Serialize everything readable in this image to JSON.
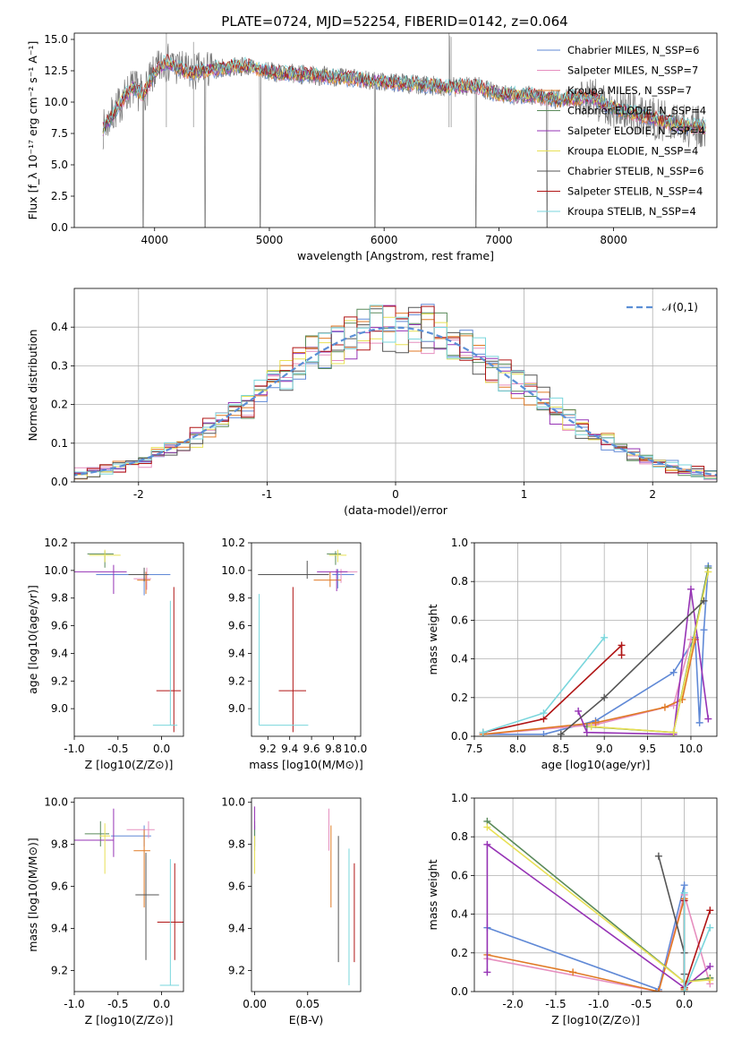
{
  "title": "PLATE=0724, MJD=52254, FIBERID=0142, z=0.064",
  "series_colors": [
    "#6089d6",
    "#e68fbf",
    "#e07a25",
    "#5a8a5a",
    "#9633b5",
    "#e8e055",
    "#555555",
    "#b01515",
    "#7ad6dc"
  ],
  "chart_data": [
    {
      "id": "spectrum",
      "type": "line",
      "title": "PLATE=0724, MJD=52254, FIBERID=0142, z=0.064",
      "xlabel": "wavelength [Angstrom, rest frame]",
      "ylabel": "Flux [f_λ 10⁻¹⁷ erg cm⁻² s⁻¹ A⁻¹]",
      "xlim": [
        3300,
        8900
      ],
      "ylim": [
        0,
        15.5
      ],
      "xticks": [
        4000,
        5000,
        6000,
        7000,
        8000
      ],
      "yticks": [
        0.0,
        2.5,
        5.0,
        7.5,
        10.0,
        12.5,
        15.0
      ],
      "grid": false,
      "legend": "upper right",
      "legend_entries": [
        "Chabrier MILES, N_SSP=6",
        "Salpeter MILES, N_SSP=7",
        "Kroupa MILES, N_SSP=7",
        "Chabrier ELODIE, N_SSP=4",
        "Salpeter ELODIE, N_SSP=4",
        "Kroupa ELODIE, N_SSP=4",
        "Chabrier STELIB, N_SSP=6",
        "Salpeter STELIB, N_SSP=4",
        "Kroupa STELIB, N_SSP=4"
      ],
      "data_envelope": {
        "x": [
          3550,
          3650,
          3800,
          3900,
          4000,
          4100,
          4300,
          4500,
          4800,
          5000,
          5300,
          5600,
          6000,
          6300,
          6600,
          6800,
          7000,
          7300,
          7500,
          7800,
          8000,
          8300,
          8600,
          8800
        ],
        "y": [
          7.8,
          9.2,
          11.2,
          10.6,
          12.3,
          13.2,
          12.3,
          12.6,
          12.9,
          12.4,
          12.2,
          12.0,
          11.6,
          11.4,
          11.2,
          11.3,
          10.6,
          10.5,
          10.2,
          10.4,
          9.5,
          8.8,
          8.1,
          8.0
        ]
      }
    },
    {
      "id": "residuals",
      "type": "histogram",
      "xlabel": "(data-model)/error",
      "ylabel": "Normed distribution",
      "xlim": [
        -2.5,
        2.5
      ],
      "ylim": [
        0,
        0.5
      ],
      "xticks": [
        -2,
        -1,
        0,
        1,
        2
      ],
      "yticks": [
        0.0,
        0.1,
        0.2,
        0.3,
        0.4
      ],
      "grid": true,
      "legend": "upper right",
      "legend_label": "𝒩(0,1)",
      "reference_curve": {
        "type": "gaussian",
        "mean": 0,
        "sigma": 1
      },
      "bin_width": 0.1
    },
    {
      "id": "age_vs_Z",
      "type": "errorbar",
      "xlabel": "Z [log10(Z/Z⊙)]",
      "ylabel": "age [log10(age/yr)]",
      "xlim": [
        -1.0,
        0.25
      ],
      "ylim": [
        8.8,
        10.2
      ],
      "xticks": [
        -1.0,
        -0.5,
        0.0
      ],
      "yticks": [
        9.0,
        9.2,
        9.4,
        9.6,
        9.8,
        10.0,
        10.2
      ],
      "points": [
        {
          "x": -0.2,
          "xerr": [
            0.55,
            0.3
          ],
          "y": 9.97,
          "yerr": [
            0.15,
            0.02
          ]
        },
        {
          "x": -0.17,
          "xerr": [
            0.15,
            0.05
          ],
          "y": 9.94,
          "yerr": [
            0.08,
            0.08
          ]
        },
        {
          "x": -0.18,
          "xerr": [
            0.1,
            0.05
          ],
          "y": 9.93,
          "yerr": [
            0.1,
            0.06
          ]
        },
        {
          "x": -0.65,
          "xerr": [
            0.2,
            0.1
          ],
          "y": 10.12,
          "yerr": [
            0.1,
            0.02
          ]
        },
        {
          "x": -0.55,
          "xerr": [
            0.45,
            0.15
          ],
          "y": 9.99,
          "yerr": [
            0.16,
            0.05
          ]
        },
        {
          "x": -0.65,
          "xerr": [
            0.18,
            0.18
          ],
          "y": 10.11,
          "yerr": [
            0.05,
            0.04
          ]
        },
        {
          "x": -0.2,
          "xerr": [
            0.18,
            0.05
          ],
          "y": 9.97,
          "yerr": [
            0.05,
            0.05
          ]
        },
        {
          "x": 0.14,
          "xerr": [
            0.2,
            0.08
          ],
          "y": 9.13,
          "yerr": [
            0.3,
            0.75
          ]
        },
        {
          "x": 0.1,
          "xerr": [
            0.2,
            0.08
          ],
          "y": 8.88,
          "yerr": [
            0.0,
            0.9
          ]
        }
      ]
    },
    {
      "id": "age_vs_mass",
      "type": "errorbar",
      "xlabel": "mass [log10(M/M⊙)]",
      "ylabel": "",
      "xlim": [
        9.05,
        10.05
      ],
      "ylim": [
        8.8,
        10.2
      ],
      "xticks": [
        9.2,
        9.4,
        9.6,
        9.8,
        10.0
      ],
      "yticks": [
        9.0,
        9.2,
        9.4,
        9.6,
        9.8,
        10.0,
        10.2
      ],
      "points": [
        {
          "x": 9.84,
          "xerr": [
            0.05,
            0.15
          ],
          "y": 9.97,
          "yerr": [
            0.1,
            0.04
          ]
        },
        {
          "x": 9.87,
          "xerr": [
            0.05,
            0.15
          ],
          "y": 9.99,
          "yerr": [
            0.08,
            0.02
          ]
        },
        {
          "x": 9.77,
          "xerr": [
            0.15,
            0.1
          ],
          "y": 9.93,
          "yerr": [
            0.05,
            0.06
          ]
        },
        {
          "x": 9.82,
          "xerr": [
            0.08,
            0.05
          ],
          "y": 10.12,
          "yerr": [
            0.08,
            0.02
          ]
        },
        {
          "x": 9.83,
          "xerr": [
            0.18,
            0.1
          ],
          "y": 9.99,
          "yerr": [
            0.14,
            0.02
          ]
        },
        {
          "x": 9.84,
          "xerr": [
            0.08,
            0.08
          ],
          "y": 10.11,
          "yerr": [
            0.05,
            0.04
          ]
        },
        {
          "x": 9.56,
          "xerr": [
            0.45,
            0.2
          ],
          "y": 9.97,
          "yerr": [
            0.03,
            0.1
          ]
        },
        {
          "x": 9.43,
          "xerr": [
            0.13,
            0.12
          ],
          "y": 9.13,
          "yerr": [
            0.3,
            0.75
          ]
        },
        {
          "x": 9.12,
          "xerr": [
            0.0,
            0.45
          ],
          "y": 8.88,
          "yerr": [
            0.0,
            0.95
          ]
        }
      ]
    },
    {
      "id": "massweight_vs_age",
      "type": "line",
      "xlabel": "age [log10(age/yr)]",
      "ylabel": "mass weight",
      "xlim": [
        7.5,
        10.3
      ],
      "ylim": [
        0,
        1
      ],
      "xticks": [
        7.5,
        8.0,
        8.5,
        9.0,
        9.5,
        10.0
      ],
      "yticks": [
        0.0,
        0.2,
        0.4,
        0.6,
        0.8,
        1.0
      ],
      "grid": true,
      "series": [
        {
          "x": [
            7.6,
            8.3,
            8.9,
            9.8,
            10.05,
            10.1,
            10.15,
            10.2
          ],
          "y": [
            0.01,
            0.01,
            0.08,
            0.33,
            0.51,
            0.07,
            0.55,
            0.88
          ]
        },
        {
          "x": [
            7.6,
            8.9,
            9.8,
            10.0,
            10.05
          ],
          "y": [
            0.01,
            0.06,
            0.16,
            0.5,
            0.5
          ]
        },
        {
          "x": [
            7.6,
            8.9,
            9.7,
            9.9,
            10.05
          ],
          "y": [
            0.01,
            0.07,
            0.15,
            0.19,
            0.5
          ]
        },
        {
          "x": [
            8.8,
            9.8,
            10.2
          ],
          "y": [
            0.05,
            0.02,
            0.87
          ]
        },
        {
          "x": [
            8.7,
            8.8,
            9.8,
            10.0,
            10.2
          ],
          "y": [
            0.13,
            0.02,
            0.01,
            0.76,
            0.09
          ]
        },
        {
          "x": [
            8.85,
            9.8,
            10.2
          ],
          "y": [
            0.05,
            0.02,
            0.85
          ]
        },
        {
          "x": [
            8.5,
            9.0,
            10.15
          ],
          "y": [
            0.01,
            0.2,
            0.7
          ]
        },
        {
          "x": [
            7.6,
            8.3,
            9.2,
            9.2
          ],
          "y": [
            0.02,
            0.09,
            0.47,
            0.42
          ]
        },
        {
          "x": [
            7.6,
            8.3,
            9.0
          ],
          "y": [
            0.02,
            0.12,
            0.51
          ]
        }
      ]
    },
    {
      "id": "mass_vs_Z",
      "type": "errorbar",
      "xlabel": "Z [log10(Z/Z⊙)]",
      "ylabel": "mass [log10(M/M⊙)]",
      "xlim": [
        -1.0,
        0.25
      ],
      "ylim": [
        9.1,
        10.02
      ],
      "xticks": [
        -1.0,
        -0.5,
        0.0
      ],
      "yticks": [
        9.2,
        9.4,
        9.6,
        9.8,
        10.0
      ],
      "points": [
        {
          "x": -0.2,
          "xerr": [
            0.38,
            0.08
          ],
          "y": 9.84,
          "yerr": [
            0.05,
            0.05
          ]
        },
        {
          "x": -0.15,
          "xerr": [
            0.25,
            0.07
          ],
          "y": 9.87,
          "yerr": [
            0.04,
            0.04
          ]
        },
        {
          "x": -0.2,
          "xerr": [
            0.12,
            0.07
          ],
          "y": 9.77,
          "yerr": [
            0.27,
            0.1
          ]
        },
        {
          "x": -0.7,
          "xerr": [
            0.18,
            0.1
          ],
          "y": 9.85,
          "yerr": [
            0.06,
            0.06
          ]
        },
        {
          "x": -0.55,
          "xerr": [
            0.45,
            0.0
          ],
          "y": 9.82,
          "yerr": [
            0.08,
            0.15
          ]
        },
        {
          "x": -0.65,
          "xerr": [
            0.06,
            0.06
          ],
          "y": 9.84,
          "yerr": [
            0.18,
            0.06
          ]
        },
        {
          "x": -0.18,
          "xerr": [
            0.12,
            0.15
          ],
          "y": 9.56,
          "yerr": [
            0.31,
            0.2
          ]
        },
        {
          "x": 0.15,
          "xerr": [
            0.2,
            0.1
          ],
          "y": 9.43,
          "yerr": [
            0.18,
            0.28
          ]
        },
        {
          "x": 0.1,
          "xerr": [
            0.12,
            0.1
          ],
          "y": 9.13,
          "yerr": [
            0.0,
            0.6
          ]
        }
      ]
    },
    {
      "id": "mass_vs_EBV",
      "type": "errorbar",
      "xlabel": "E(B-V)",
      "ylabel": "",
      "xlim": [
        -0.003,
        0.1
      ],
      "ylim": [
        9.1,
        10.02
      ],
      "xticks": [
        0.0,
        0.05
      ],
      "yticks": [
        9.2,
        9.4,
        9.6,
        9.8,
        10.0
      ],
      "points": [
        {
          "x": 0.0,
          "y": 9.84,
          "yerr": [
            0.05,
            0.05
          ]
        },
        {
          "x": 0.07,
          "y": 9.87,
          "yerr": [
            0.1,
            0.1
          ]
        },
        {
          "x": 0.072,
          "y": 9.77,
          "yerr": [
            0.27,
            0.12
          ]
        },
        {
          "x": 0.0,
          "y": 9.85,
          "yerr": [
            0.08,
            0.06
          ]
        },
        {
          "x": 0.0,
          "y": 9.9,
          "yerr": [
            0.03,
            0.08
          ]
        },
        {
          "x": 0.0,
          "y": 9.76,
          "yerr": [
            0.1,
            0.08
          ]
        },
        {
          "x": 0.079,
          "y": 9.55,
          "yerr": [
            0.31,
            0.29
          ]
        },
        {
          "x": 0.094,
          "y": 9.42,
          "yerr": [
            0.18,
            0.29
          ]
        },
        {
          "x": 0.089,
          "y": 9.38,
          "yerr": [
            0.25,
            0.4
          ]
        }
      ]
    },
    {
      "id": "massweight_vs_Z",
      "type": "line",
      "xlabel": "Z [log10(Z/Z⊙)]",
      "ylabel": "mass weight",
      "xlim": [
        -2.45,
        0.38
      ],
      "ylim": [
        0,
        1
      ],
      "xticks": [
        -2.0,
        -1.5,
        -1.0,
        -0.5,
        0.0
      ],
      "yticks": [
        0.0,
        0.2,
        0.4,
        0.6,
        0.8,
        1.0
      ],
      "grid": true,
      "series": [
        {
          "x": [
            -2.3,
            -0.3,
            0.0,
            0.0
          ],
          "y": [
            0.33,
            0.01,
            0.55,
            0.01
          ]
        },
        {
          "x": [
            -2.3,
            -0.3,
            0.0,
            0.3
          ],
          "y": [
            0.17,
            0.0,
            0.5,
            0.04
          ]
        },
        {
          "x": [
            -2.3,
            -1.3,
            -0.3,
            0.0,
            0.0
          ],
          "y": [
            0.19,
            0.1,
            0.0,
            0.48,
            0.01
          ]
        },
        {
          "x": [
            -2.3,
            0.0,
            0.3
          ],
          "y": [
            0.88,
            0.05,
            0.07
          ]
        },
        {
          "x": [
            -2.3,
            -2.3,
            0.0,
            0.3
          ],
          "y": [
            0.1,
            0.76,
            0.02,
            0.13
          ]
        },
        {
          "x": [
            -2.3,
            0.0,
            0.3
          ],
          "y": [
            0.85,
            0.05,
            0.06
          ]
        },
        {
          "x": [
            -0.3,
            0.0,
            0.0
          ],
          "y": [
            0.7,
            0.2,
            0.09
          ]
        },
        {
          "x": [
            0.0,
            0.0,
            0.3
          ],
          "y": [
            0.47,
            0.02,
            0.42
          ]
        },
        {
          "x": [
            0.0,
            0.0,
            0.3
          ],
          "y": [
            0.51,
            0.0,
            0.33
          ]
        }
      ]
    }
  ]
}
